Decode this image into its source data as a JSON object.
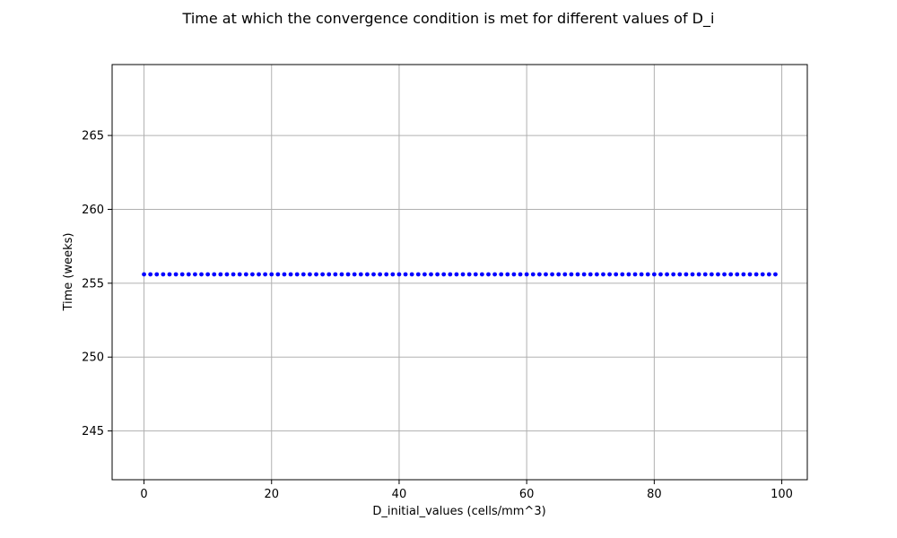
{
  "chart_data": {
    "type": "scatter",
    "title": "Time at which the convergence condition is met for different values of D_i",
    "xlabel": "D_initial_values (cells/mm^3)",
    "ylabel": "Time (weeks)",
    "xlim": [
      -5,
      104
    ],
    "ylim": [
      241.7,
      269.8
    ],
    "xticks": [
      0,
      20,
      40,
      60,
      80,
      100
    ],
    "yticks": [
      245,
      250,
      255,
      260,
      265
    ],
    "grid": true,
    "marker_color": "#0000ff",
    "series": [
      {
        "x": [
          0,
          1,
          2,
          3,
          4,
          5,
          6,
          7,
          8,
          9,
          10,
          11,
          12,
          13,
          14,
          15,
          16,
          17,
          18,
          19,
          20,
          21,
          22,
          23,
          24,
          25,
          26,
          27,
          28,
          29,
          30,
          31,
          32,
          33,
          34,
          35,
          36,
          37,
          38,
          39,
          40,
          41,
          42,
          43,
          44,
          45,
          46,
          47,
          48,
          49,
          50,
          51,
          52,
          53,
          54,
          55,
          56,
          57,
          58,
          59,
          60,
          61,
          62,
          63,
          64,
          65,
          66,
          67,
          68,
          69,
          70,
          71,
          72,
          73,
          74,
          75,
          76,
          77,
          78,
          79,
          80,
          81,
          82,
          83,
          84,
          85,
          86,
          87,
          88,
          89,
          90,
          91,
          92,
          93,
          94,
          95,
          96,
          97,
          98,
          99
        ],
        "y_constant": 255.6
      }
    ]
  }
}
